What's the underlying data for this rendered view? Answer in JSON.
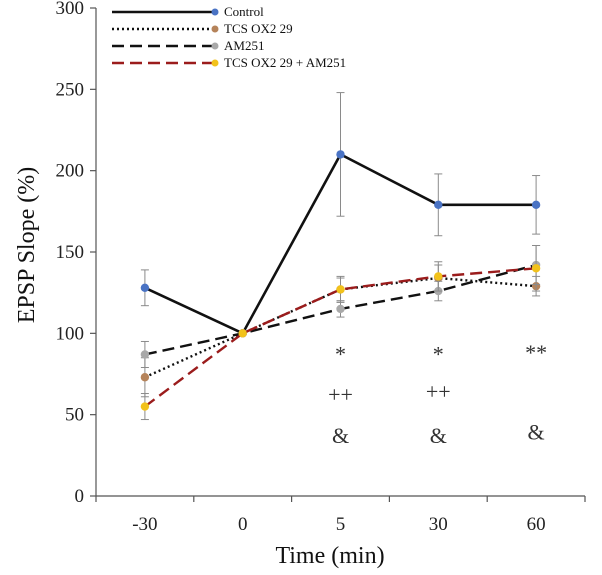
{
  "chart_data": {
    "type": "line",
    "title": "",
    "xlabel": "Time (min)",
    "ylabel": "EPSP Slope (%)",
    "categories": [
      "-30",
      "0",
      "5",
      "30",
      "60"
    ],
    "ylim": [
      0,
      300
    ],
    "yticks": [
      "0",
      "50",
      "100",
      "150",
      "200",
      "250",
      "300"
    ],
    "grid": false,
    "legend_position": "top-left",
    "series": [
      {
        "name": "Control",
        "values": [
          128,
          100,
          210,
          179,
          179
        ],
        "errors": [
          11,
          0,
          38,
          19,
          18
        ],
        "line_color": "#111111",
        "line_style": "solid",
        "marker_color": "#4a73c4"
      },
      {
        "name": "TCS OX2 29",
        "values": [
          73,
          100,
          127,
          134,
          129
        ],
        "errors": [
          12,
          0,
          8,
          8,
          6
        ],
        "line_color": "#111111",
        "line_style": "dotted",
        "marker_color": "#b5835a"
      },
      {
        "name": "AM251",
        "values": [
          87,
          100,
          115,
          126,
          142
        ],
        "errors": [
          8,
          0,
          5,
          6,
          12
        ],
        "line_color": "#111111",
        "line_style": "dashed",
        "marker_color": "#a9a9a9"
      },
      {
        "name": "TCS OX2 29 + AM251",
        "values": [
          55,
          100,
          127,
          135,
          140
        ],
        "errors": [
          8,
          0,
          7,
          9,
          14
        ],
        "line_color": "#9b1c1c",
        "line_style": "dashed",
        "marker_color": "#f2c21b"
      }
    ],
    "annotations": [
      {
        "text": "*",
        "category": "5",
        "y": 87
      },
      {
        "text": "++",
        "category": "5",
        "y": 62
      },
      {
        "text": "&",
        "category": "5",
        "y": 37
      },
      {
        "text": "*",
        "category": "30",
        "y": 87
      },
      {
        "text": "++",
        "category": "30",
        "y": 64
      },
      {
        "text": "&",
        "category": "30",
        "y": 37
      },
      {
        "text": "**",
        "category": "60",
        "y": 88
      },
      {
        "text": "&",
        "category": "60",
        "y": 39
      }
    ]
  }
}
